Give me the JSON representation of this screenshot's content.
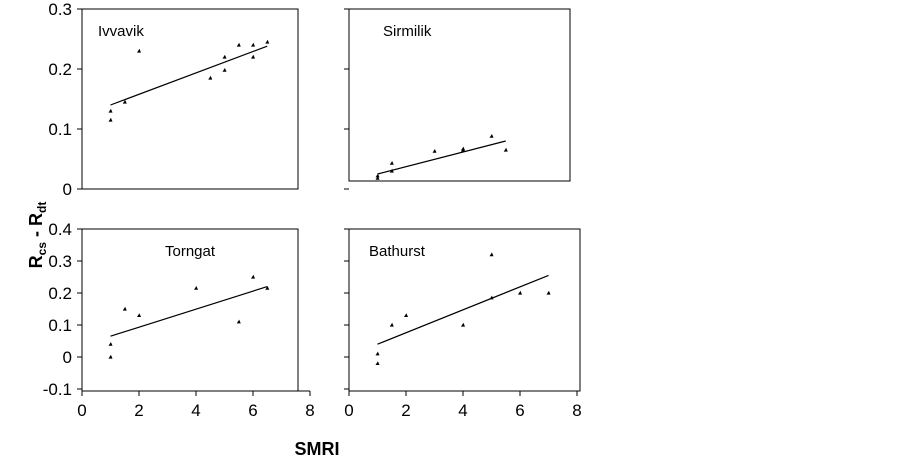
{
  "chart_data": {
    "type": "scatter",
    "xlabel": "SMRI",
    "ylabel": {
      "main": "R",
      "sub1": "cs",
      "sep": " - ",
      "main2": "R",
      "sub2": "dt"
    },
    "panels": [
      {
        "title": "Ivvavik",
        "xlim": [
          0,
          8
        ],
        "ylim": [
          0,
          0.3
        ],
        "yticks": [
          "0",
          "0.1",
          "0.2",
          "0.3"
        ],
        "xticks": [],
        "points": [
          [
            1,
            0.115
          ],
          [
            1,
            0.13
          ],
          [
            1.5,
            0.145
          ],
          [
            2,
            0.23
          ],
          [
            4.5,
            0.185
          ],
          [
            5,
            0.198
          ],
          [
            5,
            0.22
          ],
          [
            5.5,
            0.24
          ],
          [
            6,
            0.22
          ],
          [
            6,
            0.24
          ],
          [
            6.5,
            0.245
          ]
        ],
        "fit": [
          [
            1,
            0.14
          ],
          [
            6.5,
            0.238
          ]
        ]
      },
      {
        "title": "Sirmilik",
        "xlim": [
          0,
          8
        ],
        "ylim": [
          0,
          0.3
        ],
        "yticks": [],
        "xticks": [],
        "points": [
          [
            1,
            0.018
          ],
          [
            1,
            0.022
          ],
          [
            1.5,
            0.03
          ],
          [
            1.5,
            0.043
          ],
          [
            3,
            0.063
          ],
          [
            4,
            0.065
          ],
          [
            4,
            0.067
          ],
          [
            5,
            0.088
          ],
          [
            5.5,
            0.065
          ]
        ],
        "fit": [
          [
            1,
            0.025
          ],
          [
            5.5,
            0.08
          ]
        ]
      },
      {
        "title": "Torngat",
        "xlim": [
          0,
          8
        ],
        "ylim": [
          -0.1,
          0.4
        ],
        "yticks": [
          "-0.1",
          "0",
          "0.1",
          "0.2",
          "0.3",
          "0.4"
        ],
        "xticks": [
          "0",
          "2",
          "4",
          "6",
          "8"
        ],
        "points": [
          [
            1,
            0
          ],
          [
            1,
            0.04
          ],
          [
            1.5,
            0.15
          ],
          [
            2,
            0.13
          ],
          [
            4,
            0.215
          ],
          [
            5.5,
            0.11
          ],
          [
            6,
            0.25
          ],
          [
            6.5,
            0.215
          ]
        ],
        "fit": [
          [
            1,
            0.065
          ],
          [
            6.5,
            0.22
          ]
        ]
      },
      {
        "title": "Bathurst",
        "xlim": [
          0,
          8
        ],
        "ylim": [
          -0.1,
          0.4
        ],
        "yticks": [],
        "xticks": [
          "0",
          "2",
          "4",
          "6",
          "8"
        ],
        "points": [
          [
            1,
            -0.02
          ],
          [
            1,
            0.01
          ],
          [
            1.5,
            0.1
          ],
          [
            2,
            0.13
          ],
          [
            4,
            0.1
          ],
          [
            5,
            0.185
          ],
          [
            5,
            0.32
          ],
          [
            6,
            0.2
          ],
          [
            7,
            0.2
          ]
        ],
        "fit": [
          [
            1,
            0.04
          ],
          [
            7,
            0.255
          ]
        ]
      }
    ]
  }
}
